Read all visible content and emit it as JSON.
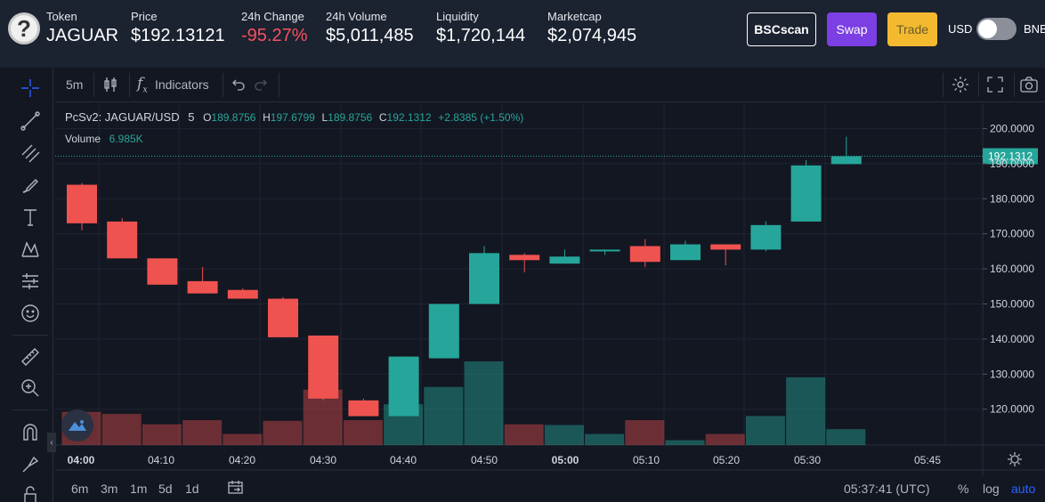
{
  "header": {
    "token": {
      "label": "Token",
      "value": "JAGUAR"
    },
    "price": {
      "label": "Price",
      "value": "$192.13121"
    },
    "change": {
      "label": "24h Change",
      "value": "-95.27%"
    },
    "volume": {
      "label": "24h Volume",
      "value": "$5,011,485"
    },
    "liquidity": {
      "label": "Liquidity",
      "value": "$1,720,144"
    },
    "marketcap": {
      "label": "Marketcap",
      "value": "$2,074,945"
    },
    "bscscan_label": "BSCscan",
    "swap_label": "Swap",
    "trade_label": "Trade",
    "toggle_left": "USD",
    "toggle_right": "BNB",
    "colors": {
      "swap": "#7b3fe4",
      "trade": "#f3ba2f",
      "negative": "#f7525f"
    }
  },
  "toolbar": {
    "interval": "5m",
    "indicators_label": "Indicators"
  },
  "legend": {
    "symbol": "PcSv2: JAGUAR/USD",
    "interval": "5",
    "o_key": "O",
    "o_val": "189.8756",
    "h_key": "H",
    "h_val": "197.6799",
    "l_key": "L",
    "l_val": "189.8756",
    "c_key": "C",
    "c_val": "192.1312",
    "change": "+2.8385 (+1.50%)",
    "volume_label": "Volume",
    "volume_val": "6.985K"
  },
  "bottom": {
    "ranges": [
      "6m",
      "3m",
      "1m",
      "5d",
      "1d"
    ],
    "clock": "05:37:41 (UTC)",
    "pct_label": "%",
    "log_label": "log",
    "auto_label": "auto"
  },
  "chart_data": {
    "type": "candlestick",
    "x_labels": [
      "04:00",
      "04:10",
      "04:20",
      "04:30",
      "04:40",
      "04:50",
      "05:00",
      "05:10",
      "05:20",
      "05:30",
      "05:45"
    ],
    "y_ticks": [
      120,
      130,
      140,
      150,
      160,
      170,
      180,
      190,
      200
    ],
    "ylim": [
      112,
      205
    ],
    "last_price": 192.1312,
    "last_price_label": "192.1312",
    "up_color": "#26a69a",
    "down_color": "#ef5350",
    "candles": [
      {
        "t": "04:00",
        "o": 184,
        "h": 184.5,
        "l": 171,
        "c": 173
      },
      {
        "t": "04:05",
        "o": 173.5,
        "h": 174.5,
        "l": 163,
        "c": 163
      },
      {
        "t": "04:10",
        "o": 163,
        "h": 163,
        "l": 155.5,
        "c": 155.5
      },
      {
        "t": "04:15",
        "o": 156.5,
        "h": 160.5,
        "l": 153,
        "c": 153
      },
      {
        "t": "04:20",
        "o": 154,
        "h": 154.5,
        "l": 151.5,
        "c": 151.5
      },
      {
        "t": "04:25",
        "o": 151.5,
        "h": 152,
        "l": 140.5,
        "c": 140.5
      },
      {
        "t": "04:30",
        "o": 141,
        "h": 141,
        "l": 122.5,
        "c": 123
      },
      {
        "t": "04:35",
        "o": 122.5,
        "h": 123,
        "l": 118,
        "c": 118
      },
      {
        "t": "04:40",
        "o": 118,
        "h": 135,
        "l": 118,
        "c": 135
      },
      {
        "t": "04:45",
        "o": 134.5,
        "h": 150,
        "l": 134.5,
        "c": 150
      },
      {
        "t": "04:50",
        "o": 150,
        "h": 166.5,
        "l": 150,
        "c": 164.5
      },
      {
        "t": "04:55",
        "o": 164,
        "h": 164.5,
        "l": 159,
        "c": 162.5
      },
      {
        "t": "05:00",
        "o": 161.5,
        "h": 165.5,
        "l": 161.5,
        "c": 163.5
      },
      {
        "t": "05:05",
        "o": 165,
        "h": 165.5,
        "l": 164,
        "c": 165.5
      },
      {
        "t": "05:10",
        "o": 166.5,
        "h": 168.5,
        "l": 160.5,
        "c": 162
      },
      {
        "t": "05:15",
        "o": 162.5,
        "h": 168,
        "l": 162.5,
        "c": 167
      },
      {
        "t": "05:20",
        "o": 167,
        "h": 167,
        "l": 161,
        "c": 165.5
      },
      {
        "t": "05:25",
        "o": 165.5,
        "h": 173.5,
        "l": 165,
        "c": 172.5
      },
      {
        "t": "05:30",
        "o": 173.5,
        "h": 191,
        "l": 173.5,
        "c": 189.5
      },
      {
        "t": "05:35",
        "o": 189.8756,
        "h": 197.6799,
        "l": 189.8756,
        "c": 192.1312
      }
    ],
    "volume": [
      4.8,
      4.5,
      3.0,
      3.6,
      1.6,
      3.5,
      8.0,
      3.6,
      5.9,
      8.4,
      12.1,
      3.0,
      2.9,
      1.6,
      3.6,
      0.7,
      1.6,
      4.2,
      9.8,
      2.3
    ]
  }
}
